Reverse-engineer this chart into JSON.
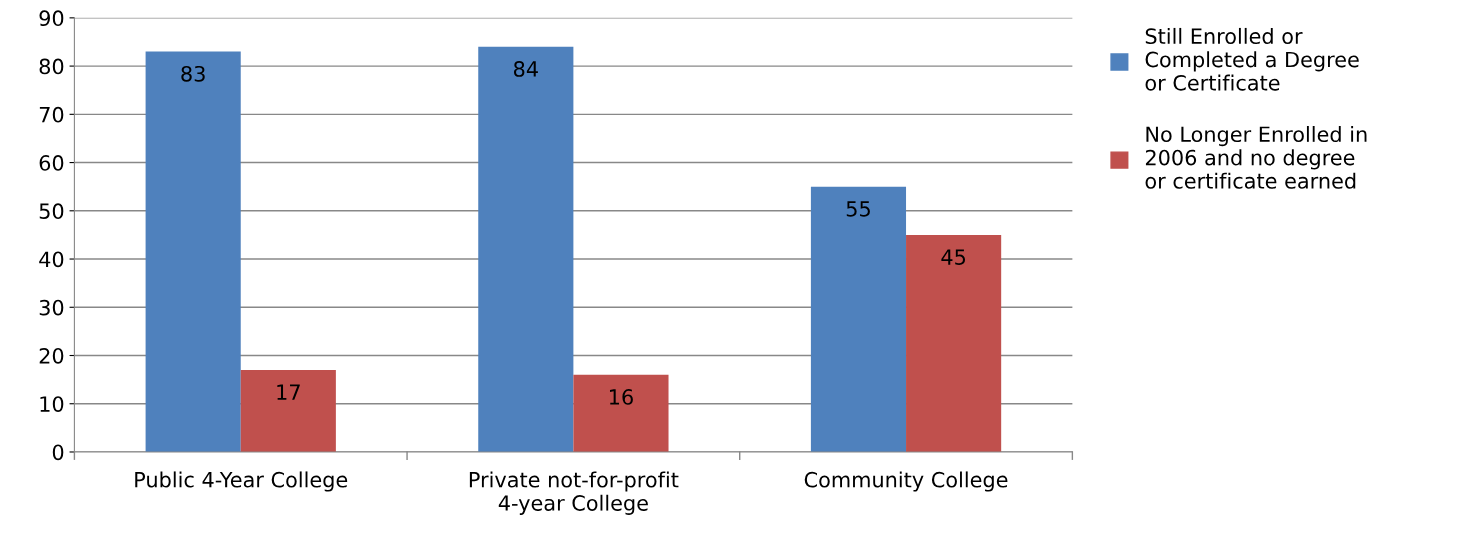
{
  "chart_data": {
    "type": "bar",
    "categories": [
      "Public 4-Year College",
      "Private not-for-profit\n4-year College",
      "Community College"
    ],
    "series": [
      {
        "name": "Still Enrolled or\nCompleted a Degree\nor Certificate",
        "color": "#4f81bd",
        "values": [
          83,
          84,
          55
        ]
      },
      {
        "name": "No Longer Enrolled in\n2006 and no degree\nor certificate earned",
        "color": "#c0504d",
        "values": [
          17,
          16,
          45
        ]
      }
    ],
    "ylim": [
      0,
      90
    ],
    "yticks": [
      0,
      10,
      20,
      30,
      40,
      50,
      60,
      70,
      80,
      90
    ],
    "grid": "y",
    "legend": "right",
    "data_labels": true
  }
}
